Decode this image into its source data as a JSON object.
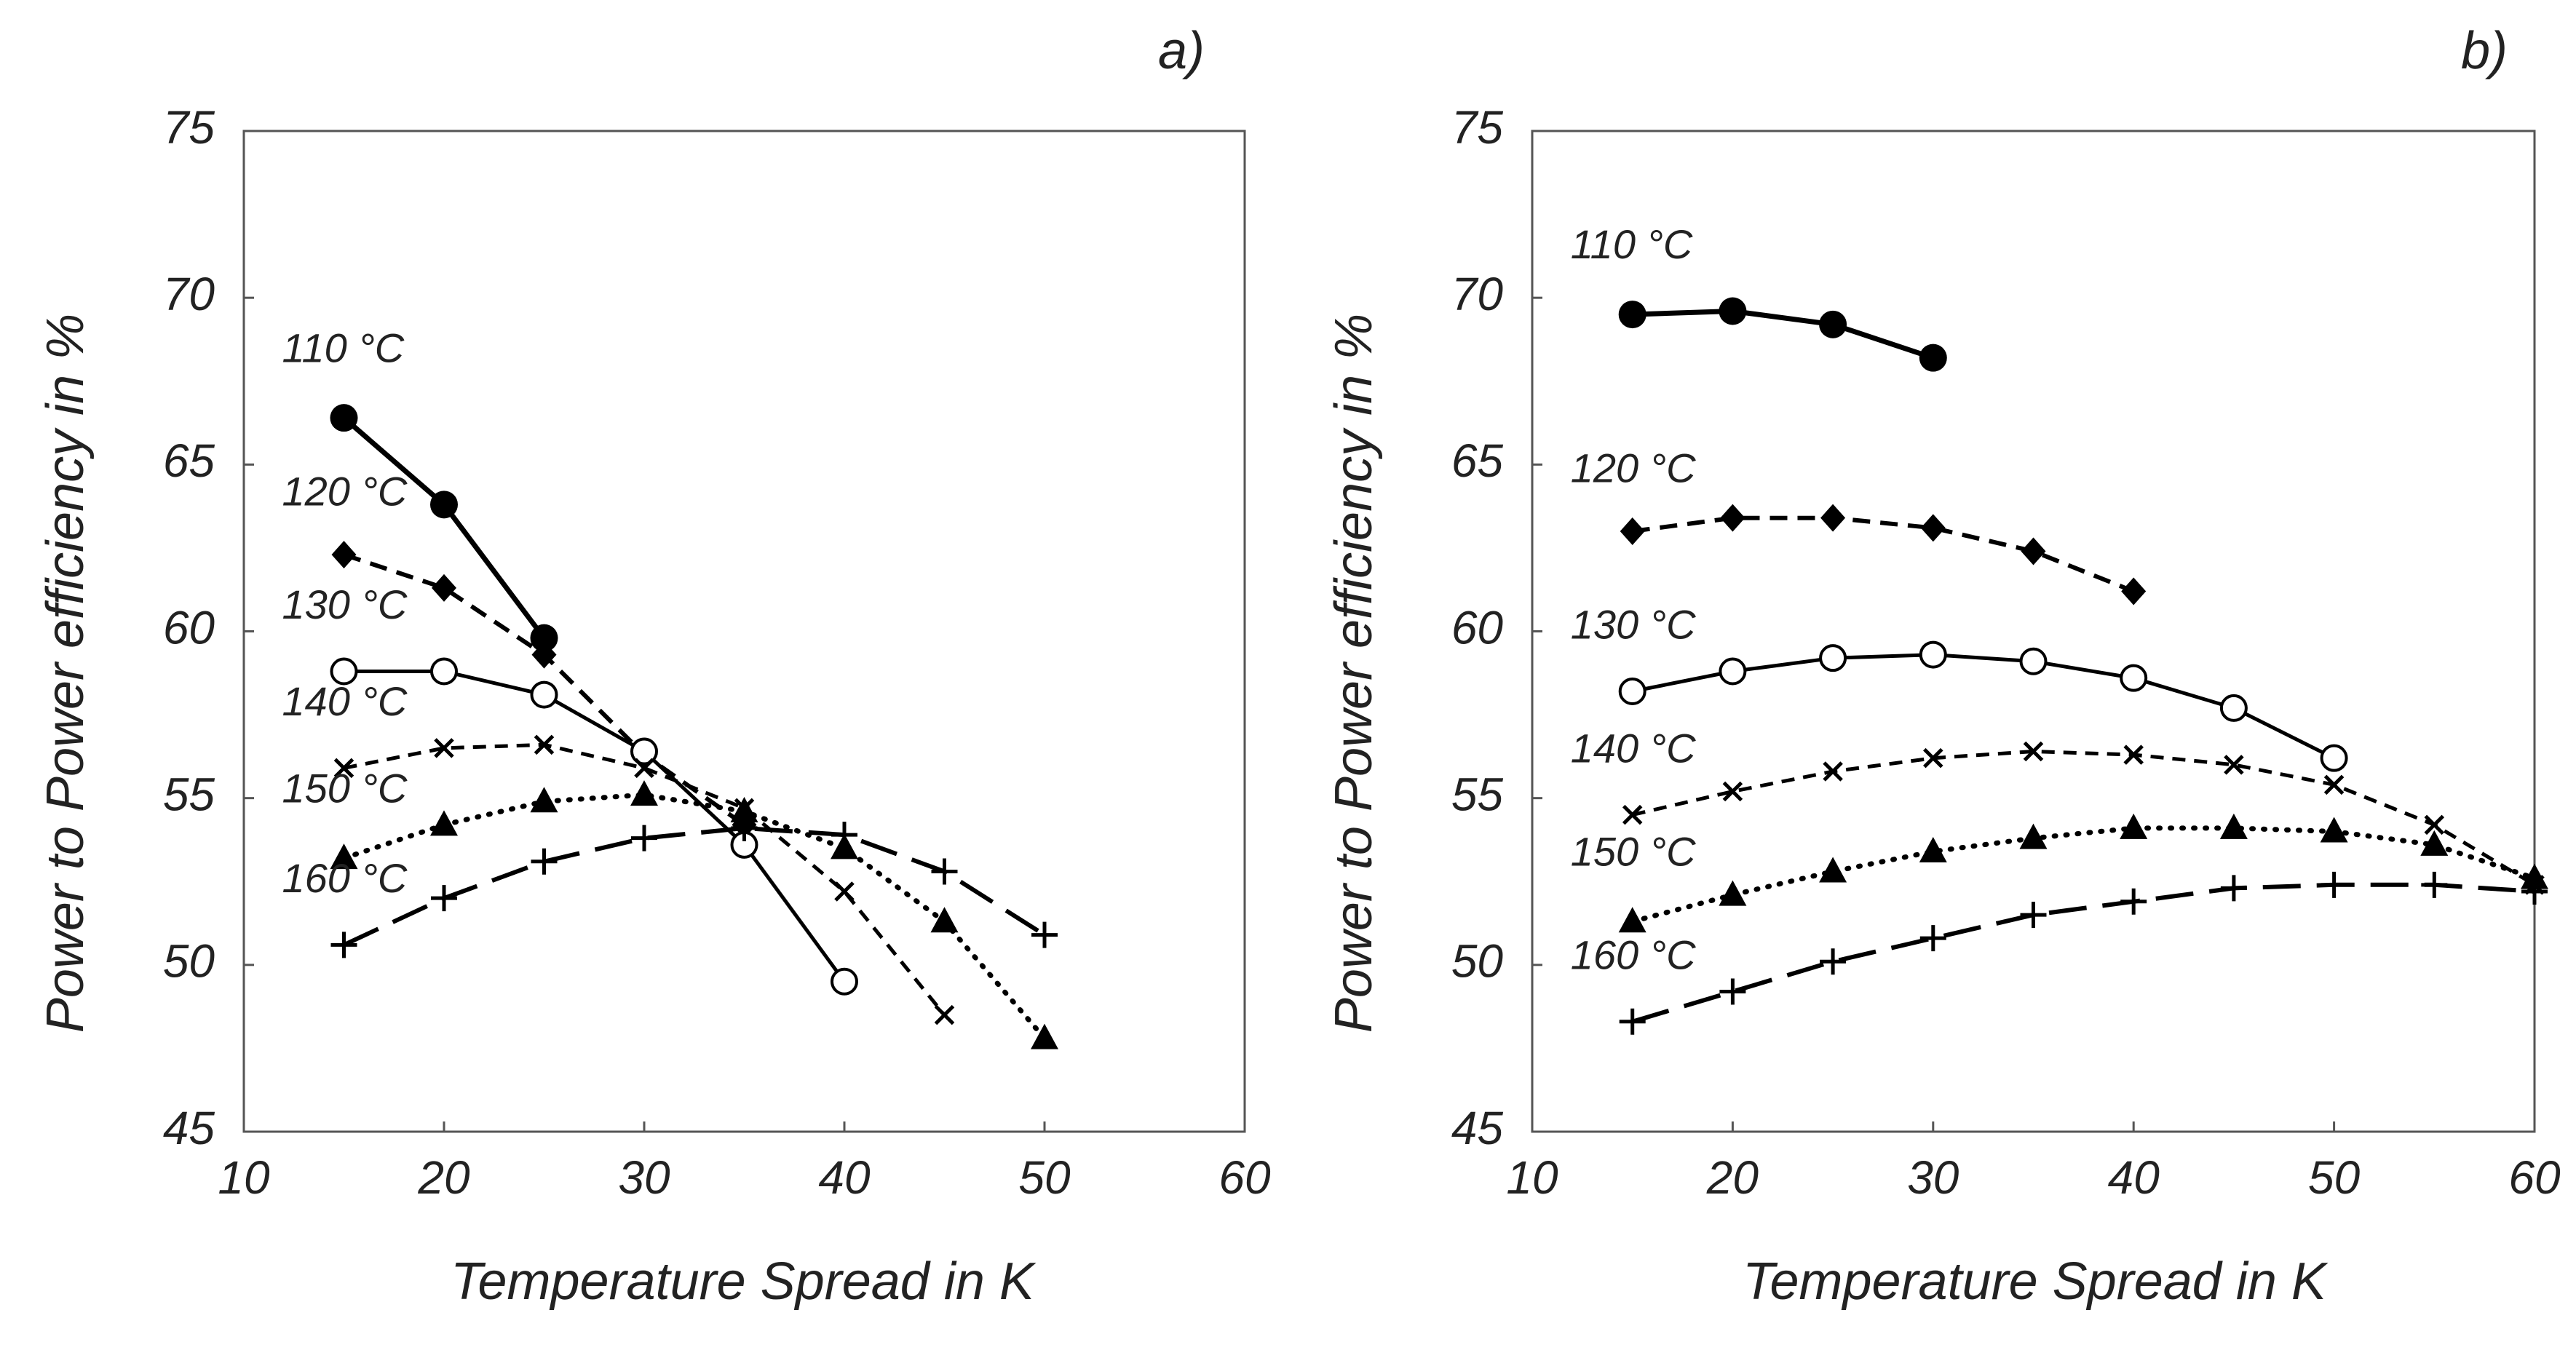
{
  "chart_data": [
    {
      "type": "line",
      "panel_label": "a)",
      "xlabel": "Temperature Spread in K",
      "ylabel": "Power to Power efficiency in %",
      "xlim": [
        10,
        60
      ],
      "ylim": [
        45,
        75
      ],
      "xticks": [
        "10",
        "20",
        "30",
        "40",
        "50",
        "60"
      ],
      "yticks": [
        "45",
        "50",
        "55",
        "60",
        "65",
        "70",
        "75"
      ],
      "grid": false,
      "series": [
        {
          "name": "110 °C",
          "marker": "filled-circle",
          "line": "solid-thick",
          "x": [
            15,
            20,
            25
          ],
          "values": [
            66.4,
            63.8,
            59.8
          ]
        },
        {
          "name": "120 °C",
          "marker": "filled-diamond",
          "line": "dashed",
          "x": [
            15,
            20,
            25,
            30,
            35
          ],
          "values": [
            62.3,
            61.3,
            59.3,
            56.3,
            54.2
          ]
        },
        {
          "name": "130 °C",
          "marker": "open-circle",
          "line": "solid",
          "x": [
            15,
            20,
            25,
            30,
            35,
            40
          ],
          "values": [
            58.8,
            58.8,
            58.1,
            56.4,
            53.6,
            49.5
          ]
        },
        {
          "name": "140 °C",
          "marker": "x",
          "line": "short-dashed",
          "x": [
            15,
            20,
            25,
            30,
            35,
            40,
            45
          ],
          "values": [
            55.9,
            56.5,
            56.6,
            55.9,
            54.7,
            52.2,
            48.5
          ]
        },
        {
          "name": "150 °C",
          "marker": "filled-triangle",
          "line": "dotted",
          "x": [
            15,
            20,
            25,
            30,
            35,
            40,
            45,
            50
          ],
          "values": [
            53.2,
            54.2,
            54.9,
            55.1,
            54.6,
            53.5,
            51.3,
            47.8
          ]
        },
        {
          "name": "160 °C",
          "marker": "plus",
          "line": "long-dashed",
          "x": [
            15,
            20,
            25,
            30,
            35,
            40,
            45,
            50
          ],
          "values": [
            50.6,
            52.0,
            53.1,
            53.8,
            54.1,
            53.9,
            52.8,
            50.9
          ]
        }
      ]
    },
    {
      "type": "line",
      "panel_label": "b)",
      "xlabel": "Temperature Spread in K",
      "ylabel": "Power to Power efficiency in %",
      "xlim": [
        10,
        60
      ],
      "ylim": [
        45,
        75
      ],
      "xticks": [
        "10",
        "20",
        "30",
        "40",
        "50",
        "60"
      ],
      "yticks": [
        "45",
        "50",
        "55",
        "60",
        "65",
        "70",
        "75"
      ],
      "grid": false,
      "series": [
        {
          "name": "110 °C",
          "marker": "filled-circle",
          "line": "solid-thick",
          "x": [
            15,
            20,
            25,
            30
          ],
          "values": [
            69.5,
            69.6,
            69.2,
            68.2
          ]
        },
        {
          "name": "120 °C",
          "marker": "filled-diamond",
          "line": "dashed",
          "x": [
            15,
            20,
            25,
            30,
            35,
            40
          ],
          "values": [
            63.0,
            63.4,
            63.4,
            63.1,
            62.4,
            61.2
          ]
        },
        {
          "name": "130 °C",
          "marker": "open-circle",
          "line": "solid",
          "x": [
            15,
            20,
            25,
            30,
            35,
            40,
            45,
            50
          ],
          "values": [
            58.2,
            58.8,
            59.2,
            59.3,
            59.1,
            58.6,
            57.7,
            56.2
          ]
        },
        {
          "name": "140 °C",
          "marker": "x",
          "line": "short-dashed",
          "x": [
            15,
            20,
            25,
            30,
            35,
            40,
            45,
            50,
            55,
            60
          ],
          "values": [
            54.5,
            55.2,
            55.8,
            56.2,
            56.4,
            56.3,
            56.0,
            55.4,
            54.2,
            52.4
          ]
        },
        {
          "name": "150 °C",
          "marker": "filled-triangle",
          "line": "dotted",
          "x": [
            15,
            20,
            25,
            30,
            35,
            40,
            45,
            50,
            55,
            60
          ],
          "values": [
            51.3,
            52.1,
            52.8,
            53.4,
            53.8,
            54.1,
            54.1,
            54.0,
            53.6,
            52.6
          ]
        },
        {
          "name": "160 °C",
          "marker": "plus",
          "line": "long-dashed",
          "x": [
            15,
            20,
            25,
            30,
            35,
            40,
            45,
            50,
            55,
            60
          ],
          "values": [
            48.3,
            49.2,
            50.1,
            50.8,
            51.5,
            51.9,
            52.3,
            52.4,
            52.4,
            52.2
          ]
        }
      ]
    }
  ]
}
